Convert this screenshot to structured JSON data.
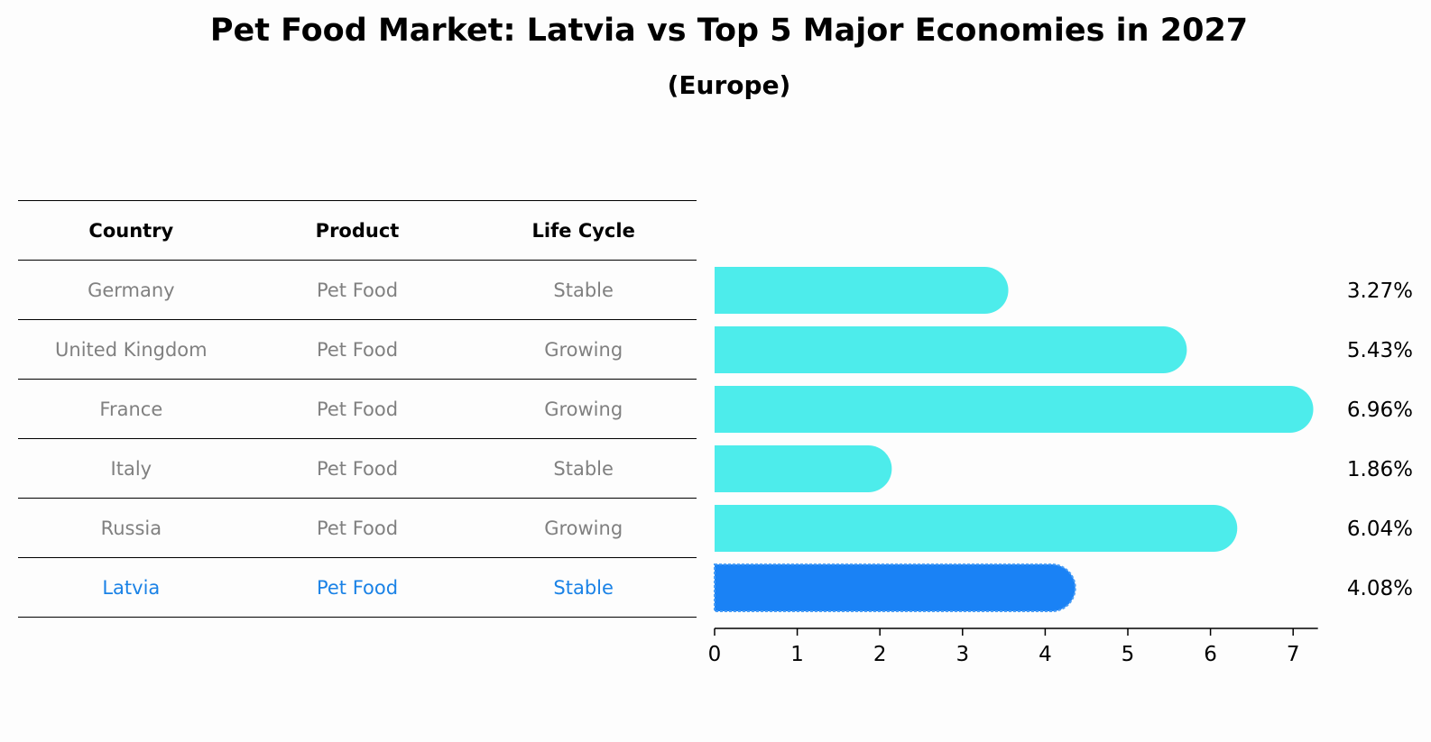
{
  "title": "Pet Food Market: Latvia vs Top 5 Major Economies in 2027",
  "subtitle": "(Europe)",
  "table": {
    "headers": [
      "Country",
      "Product",
      "Life Cycle"
    ],
    "rows": [
      [
        "Germany",
        "Pet Food",
        "Stable"
      ],
      [
        "United Kingdom",
        "Pet Food",
        "Growing"
      ],
      [
        "France",
        "Pet Food",
        "Growing"
      ],
      [
        "Italy",
        "Pet Food",
        "Stable"
      ],
      [
        "Russia",
        "Pet Food",
        "Growing"
      ],
      [
        "Latvia",
        "Pet Food",
        "Stable"
      ]
    ],
    "highlight_row": 5
  },
  "colors": {
    "bar": "#4deceb",
    "highlight": "#1a82f5",
    "table_text": "#808080",
    "highlight_text": "#1a82e6"
  },
  "chart_data": {
    "type": "bar",
    "orientation": "horizontal",
    "categories": [
      "Germany",
      "United Kingdom",
      "France",
      "Italy",
      "Russia",
      "Latvia"
    ],
    "values": [
      3.27,
      5.43,
      6.96,
      1.86,
      6.04,
      4.08
    ],
    "value_labels": [
      "3.27%",
      "5.43%",
      "6.96%",
      "1.86%",
      "6.04%",
      "4.08%"
    ],
    "xlim": [
      0,
      7.3
    ],
    "xticks": [
      0,
      1,
      2,
      3,
      4,
      5,
      6,
      7
    ],
    "highlight": "Latvia",
    "grid": false
  }
}
